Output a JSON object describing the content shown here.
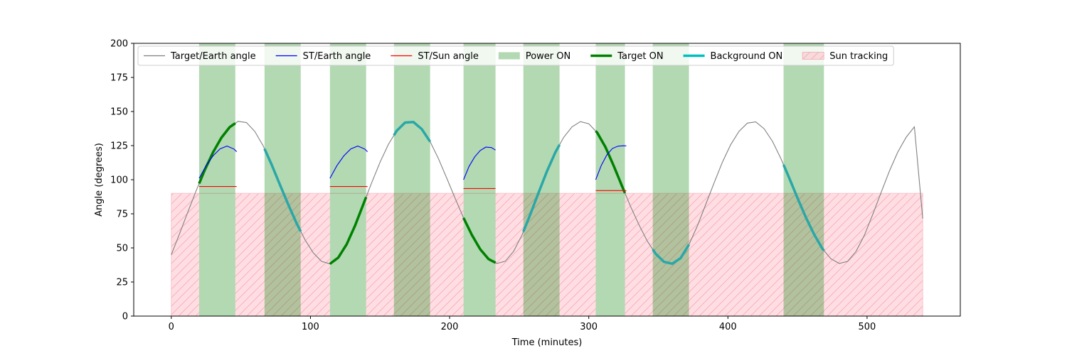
{
  "chart_data": {
    "type": "line",
    "title": "",
    "xlabel": "Time (minutes)",
    "ylabel": "Angle (degrees)",
    "xlim": [
      -27,
      567
    ],
    "ylim": [
      0,
      200
    ],
    "x_ticks": [
      0,
      100,
      200,
      300,
      400,
      500
    ],
    "y_ticks": [
      0,
      25,
      50,
      75,
      100,
      125,
      150,
      175,
      200
    ],
    "grid": false,
    "legend_position": "top",
    "legend": [
      {
        "label": "Target/Earth angle",
        "kind": "line",
        "color": "#808080"
      },
      {
        "label": "ST/Earth angle",
        "kind": "line",
        "color": "#0000ff"
      },
      {
        "label": "ST/Sun angle",
        "kind": "line",
        "color": "#ff0000"
      },
      {
        "label": "Power ON",
        "kind": "patch",
        "color": "#008000"
      },
      {
        "label": "Target ON",
        "kind": "thickline",
        "color": "#008000"
      },
      {
        "label": "Background ON",
        "kind": "thickline",
        "color": "#00bfbf"
      },
      {
        "label": "Sun tracking",
        "kind": "hatch",
        "color": "#ffb6c1"
      }
    ],
    "target_earth_angle": {
      "name": "Target/Earth angle",
      "color": "#808080",
      "x": [
        0,
        6,
        12,
        18,
        24,
        30,
        36,
        42,
        48,
        54,
        60,
        66,
        72,
        78,
        84,
        90,
        96,
        102,
        108,
        114,
        120,
        126,
        132,
        138,
        144,
        150,
        156,
        162,
        168,
        174,
        180,
        186,
        192,
        198,
        204,
        210,
        216,
        222,
        228,
        234,
        240,
        246,
        252,
        258,
        264,
        270,
        276,
        282,
        288,
        294,
        300,
        306,
        312,
        318,
        324,
        330,
        336,
        342,
        348,
        354,
        360,
        366,
        372,
        378,
        384,
        390,
        396,
        402,
        408,
        414,
        420,
        426,
        432,
        438,
        444,
        450,
        456,
        462,
        468,
        474,
        480,
        486,
        492,
        498,
        504,
        510,
        516,
        522,
        528,
        534,
        540
      ],
      "y": [
        45.0,
        60.6,
        76.6,
        92.3,
        107.0,
        120.1,
        130.8,
        138.6,
        142.8,
        141.9,
        135.4,
        124.9,
        111.3,
        96.5,
        81.9,
        68.1,
        56.1,
        46.4,
        40.1,
        38.3,
        42.9,
        52.6,
        66.2,
        82.0,
        97.8,
        112.8,
        125.9,
        135.9,
        141.9,
        142.3,
        137.1,
        127.9,
        115.4,
        101.0,
        86.3,
        72.0,
        59.5,
        49.0,
        41.8,
        38.6,
        40.2,
        47.5,
        59.4,
        74.6,
        90.7,
        106.3,
        120.1,
        131.1,
        138.8,
        142.6,
        141.0,
        134.6,
        123.9,
        110.0,
        95.1,
        80.5,
        67.1,
        55.1,
        45.8,
        39.8,
        38.4,
        42.5,
        52.4,
        66.0,
        81.7,
        97.5,
        112.8,
        125.7,
        135.5,
        141.5,
        142.4,
        137.4,
        128.2,
        115.7,
        101.4,
        86.6,
        72.4,
        59.8,
        49.3,
        42.0,
        38.6,
        40.1,
        47.3,
        59.1,
        74.3,
        90.4,
        106.2,
        120.1,
        131.0,
        138.8,
        71.5
      ]
    },
    "st_earth_angle": {
      "name": "ST/Earth angle",
      "color": "#0000ff",
      "segments": [
        {
          "x": [
            20,
            25,
            30,
            35,
            40,
            45,
            47
          ],
          "y": [
            101.0,
            110.3,
            117.5,
            122.6,
            124.7,
            122.5,
            120.5
          ]
        },
        {
          "x": [
            114,
            119,
            124,
            129,
            134,
            139,
            141
          ],
          "y": [
            101.0,
            110.3,
            117.5,
            122.6,
            124.7,
            122.5,
            120.5
          ]
        },
        {
          "x": [
            210,
            214,
            218,
            222,
            226,
            230,
            233
          ],
          "y": [
            100.0,
            109.8,
            116.7,
            121.4,
            123.9,
            123.6,
            121.7
          ]
        },
        {
          "x": [
            305,
            309,
            313,
            317,
            321,
            325,
            327
          ],
          "y": [
            100.0,
            110.5,
            118.2,
            122.9,
            124.6,
            124.9,
            124.8
          ]
        }
      ]
    },
    "st_sun_angle": {
      "name": "ST/Sun angle",
      "color": "#ff0000",
      "segments": [
        {
          "x": [
            20,
            47
          ],
          "y": [
            95.0,
            95.0
          ]
        },
        {
          "x": [
            114,
            141
          ],
          "y": [
            95.0,
            95.0
          ]
        },
        {
          "x": [
            210,
            233
          ],
          "y": [
            93.5,
            93.5
          ]
        },
        {
          "x": [
            305,
            327
          ],
          "y": [
            92.0,
            92.0
          ]
        }
      ]
    },
    "power_on": {
      "name": "Power ON",
      "color": "#008000",
      "spans": [
        [
          20,
          46
        ],
        [
          67,
          93
        ],
        [
          114,
          140
        ],
        [
          160,
          186
        ],
        [
          210,
          233
        ],
        [
          253,
          279
        ],
        [
          305,
          326
        ],
        [
          346,
          372
        ],
        [
          440,
          469
        ]
      ]
    },
    "target_on": {
      "name": "Target ON",
      "color": "#008000",
      "spans": [
        [
          20,
          46
        ],
        [
          114,
          140
        ],
        [
          210,
          233
        ],
        [
          305,
          326
        ]
      ]
    },
    "background_on": {
      "name": "Background ON",
      "color": "#00bfbf",
      "spans": [
        [
          67,
          93
        ],
        [
          160,
          186
        ],
        [
          253,
          279
        ],
        [
          346,
          372
        ],
        [
          440,
          469
        ]
      ]
    },
    "sun_tracking": {
      "name": "Sun tracking",
      "color": "#ffb6c1",
      "y_range": [
        0,
        90
      ],
      "spans": [
        [
          0,
          20
        ],
        [
          46,
          114
        ],
        [
          140,
          210
        ],
        [
          233,
          305
        ],
        [
          326,
          540
        ]
      ]
    }
  }
}
